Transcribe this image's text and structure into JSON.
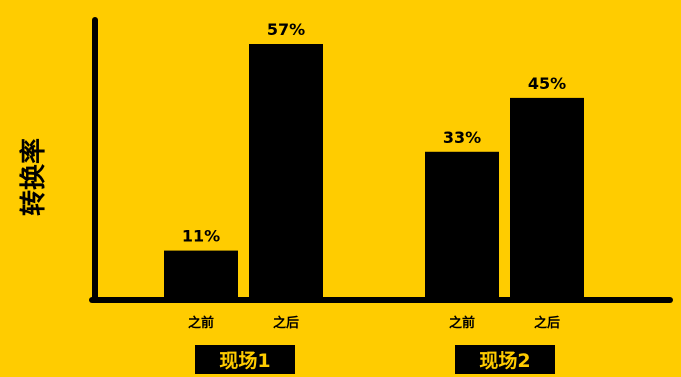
{
  "chart_data": {
    "type": "bar",
    "ylabel": "转换率",
    "ylim": [
      0,
      60
    ],
    "grid": false,
    "legend": "none",
    "value_suffix": "%",
    "groups": [
      {
        "label": "现场1",
        "categories": [
          "之前",
          "之后"
        ],
        "values": [
          11,
          57
        ]
      },
      {
        "label": "现场2",
        "categories": [
          "之前",
          "之后"
        ],
        "values": [
          33,
          45
        ]
      }
    ]
  },
  "colors": {
    "background": "#FFCC00",
    "bar": "#000000",
    "axis": "#000000",
    "group_label_bg": "#000000",
    "group_label_text": "#FFCC00",
    "text": "#000000"
  }
}
